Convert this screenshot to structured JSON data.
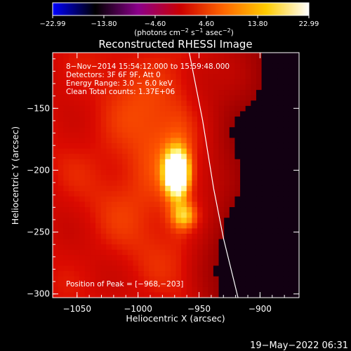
{
  "chart_data": {
    "type": "heatmap",
    "title": "Reconstructed RHESSI Image",
    "xlabel": "Heliocentric X (arcsec)",
    "ylabel": "Heliocentric Y (arcsec)",
    "xlim": [
      -1070,
      -868
    ],
    "ylim": [
      -303,
      -105
    ],
    "x_ticks": [
      {
        "value": -1050,
        "label": "−1050"
      },
      {
        "value": -1000,
        "label": "−1000"
      },
      {
        "value": -950,
        "label": "−950"
      },
      {
        "value": -900,
        "label": "−900"
      }
    ],
    "y_ticks": [
      {
        "value": -150,
        "label": "−150"
      },
      {
        "value": -200,
        "label": "−200"
      },
      {
        "value": -250,
        "label": "−250"
      },
      {
        "value": -300,
        "label": "−300"
      }
    ],
    "colorbar": {
      "min": -22.99,
      "max": 22.99,
      "ticks": [
        {
          "value": -22.99,
          "label": "−22.99"
        },
        {
          "value": -13.8,
          "label": "−13.80"
        },
        {
          "value": -4.6,
          "label": "−4.60"
        },
        {
          "value": 4.6,
          "label": "4.60"
        },
        {
          "value": 13.8,
          "label": "13.80"
        },
        {
          "value": 22.99,
          "label": "22.99"
        }
      ],
      "unit_text": "(photons cm",
      "unit_exp1": "−2",
      "unit_mid": " s",
      "unit_exp2": "−1",
      "unit_end": " asec",
      "unit_exp3": "−2",
      "unit_close": ")",
      "colormap": [
        "#0000ff",
        "#000000",
        "#8b008b",
        "#cc0000",
        "#ff6600",
        "#ffcc00",
        "#ffffff"
      ]
    },
    "annotations": [
      " 8−Nov−2014 15:54:12.000 to 15:59:48.000",
      "Detectors: 3F 6F 9F, Att 0",
      "Energy Range: 3.0 − 6.0 keV",
      "Clean    Total counts: 1.37E+06"
    ],
    "peak_label": "Position of Peak = [−968,−203]",
    "peak": {
      "x": -968,
      "y": -203
    },
    "limb": [
      [
        -958,
        -105
      ],
      [
        -947,
        -160
      ],
      [
        -938,
        -215
      ],
      [
        -930,
        -255
      ],
      [
        -918,
        -303
      ]
    ],
    "sources": [
      {
        "x": -968,
        "y": -203,
        "sx": 7,
        "sy": 13,
        "amp": 1.0
      },
      {
        "x": -962,
        "y": -237,
        "sx": 8,
        "sy": 8,
        "amp": 0.42
      },
      {
        "x": -985,
        "y": -185,
        "sx": 35,
        "sy": 60,
        "amp": 0.22
      }
    ]
  },
  "footer": {
    "date": "19−May−2022 06:31"
  }
}
